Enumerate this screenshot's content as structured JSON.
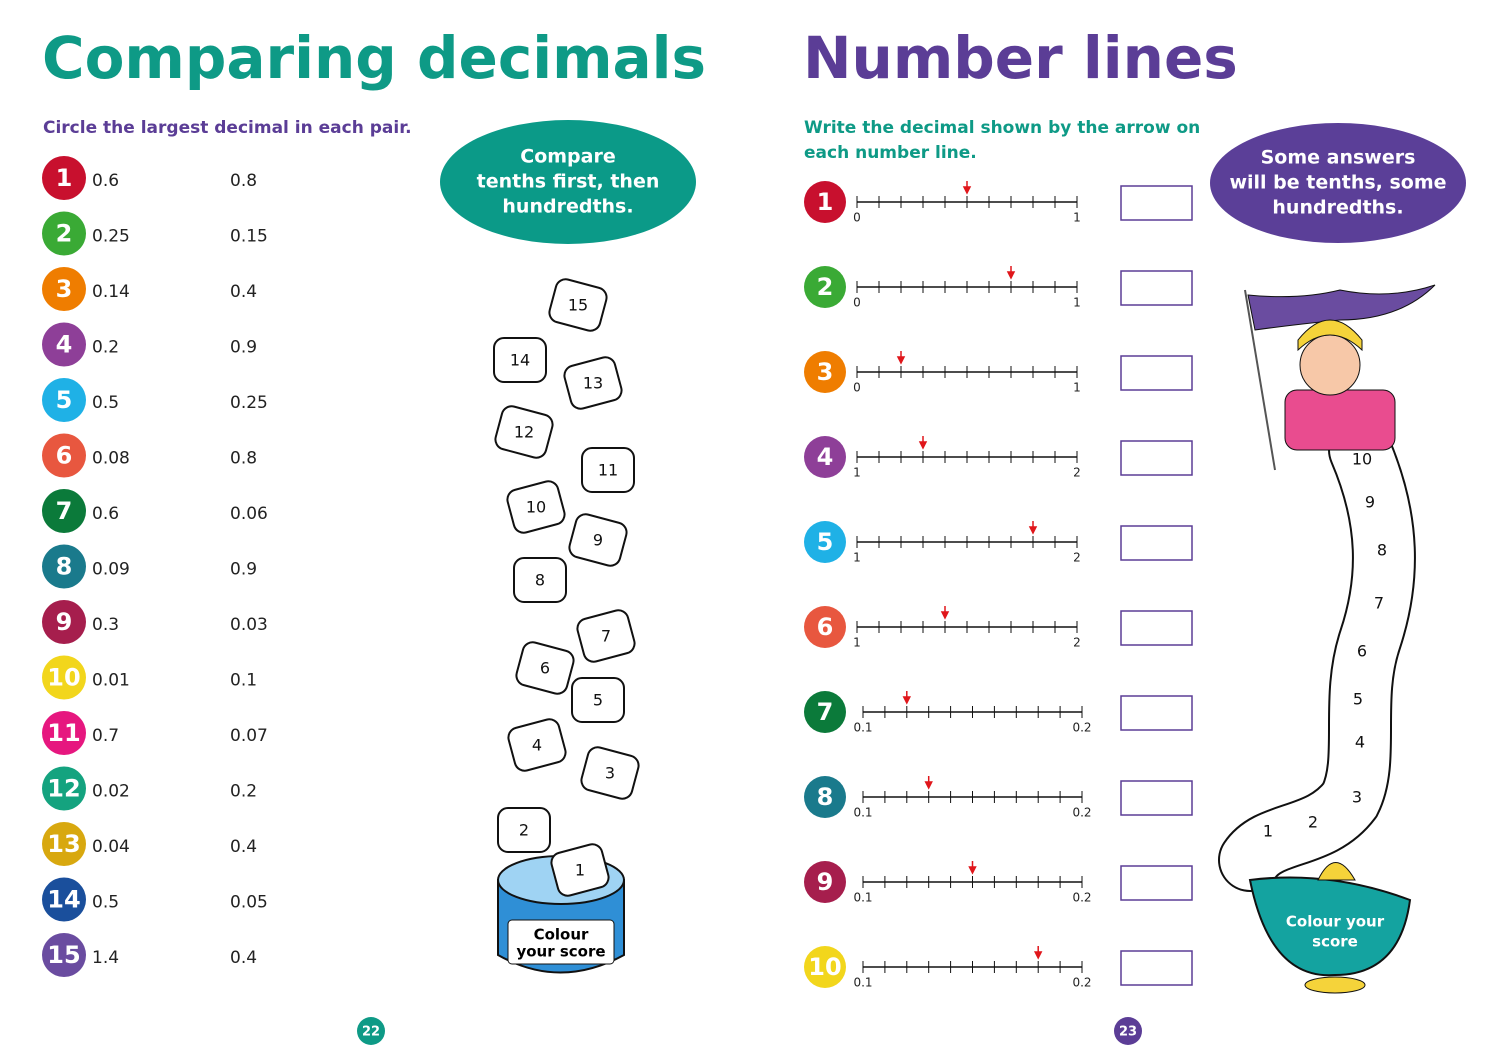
{
  "left_page": {
    "title": "Comparing decimals",
    "instruction": "Circle the largest decimal in each pair.",
    "tip": [
      "Compare",
      "tenths first, then",
      "hundredths."
    ],
    "items": [
      {
        "number": "1",
        "a": "0.6",
        "b": "0.8"
      },
      {
        "number": "2",
        "a": "0.25",
        "b": "0.15"
      },
      {
        "number": "3",
        "a": "0.14",
        "b": "0.4"
      },
      {
        "number": "4",
        "a": "0.2",
        "b": "0.9"
      },
      {
        "number": "5",
        "a": "0.5",
        "b": "0.25"
      },
      {
        "number": "6",
        "a": "0.08",
        "b": "0.8"
      },
      {
        "number": "7",
        "a": "0.6",
        "b": "0.06"
      },
      {
        "number": "8",
        "a": "0.09",
        "b": "0.9"
      },
      {
        "number": "9",
        "a": "0.3",
        "b": "0.03"
      },
      {
        "number": "10",
        "a": "0.01",
        "b": "0.1"
      },
      {
        "number": "11",
        "a": "0.7",
        "b": "0.07"
      },
      {
        "number": "12",
        "a": "0.02",
        "b": "0.2"
      },
      {
        "number": "13",
        "a": "0.04",
        "b": "0.4"
      },
      {
        "number": "14",
        "a": "0.5",
        "b": "0.05"
      },
      {
        "number": "15",
        "a": "1.4",
        "b": "0.4"
      }
    ],
    "illustration": {
      "labels": [
        "1",
        "2",
        "3",
        "4",
        "5",
        "6",
        "7",
        "8",
        "9",
        "10",
        "11",
        "12",
        "13",
        "14",
        "15"
      ],
      "caption": [
        "Colour",
        "your score"
      ]
    },
    "page_number": "22"
  },
  "right_page": {
    "title": "Number lines",
    "instruction": [
      "Write the decimal shown by the arrow on",
      "each number line."
    ],
    "tip": [
      "Some answers",
      "will be tenths, some",
      "hundredths."
    ],
    "lines": [
      {
        "number": "1",
        "start": 0,
        "end": 1,
        "arrow": 0.5
      },
      {
        "number": "2",
        "start": 0,
        "end": 1,
        "arrow": 0.7
      },
      {
        "number": "3",
        "start": 0,
        "end": 1,
        "arrow": 0.2
      },
      {
        "number": "4",
        "start": 1,
        "end": 2,
        "arrow": 1.3
      },
      {
        "number": "5",
        "start": 1,
        "end": 2,
        "arrow": 1.8
      },
      {
        "number": "6",
        "start": 1,
        "end": 2,
        "arrow": 1.4
      },
      {
        "number": "7",
        "start": 0.1,
        "end": 0.2,
        "arrow": 0.12
      },
      {
        "number": "8",
        "start": 0.1,
        "end": 0.2,
        "arrow": 0.13
      },
      {
        "number": "9",
        "start": 0.1,
        "end": 0.2,
        "arrow": 0.15
      },
      {
        "number": "10",
        "start": 0.1,
        "end": 0.2,
        "arrow": 0.18
      }
    ],
    "illustration": {
      "labels": [
        "1",
        "2",
        "3",
        "4",
        "5",
        "6",
        "7",
        "8",
        "9",
        "10"
      ],
      "caption": [
        "Colour your",
        "score"
      ]
    },
    "page_number": "23"
  }
}
